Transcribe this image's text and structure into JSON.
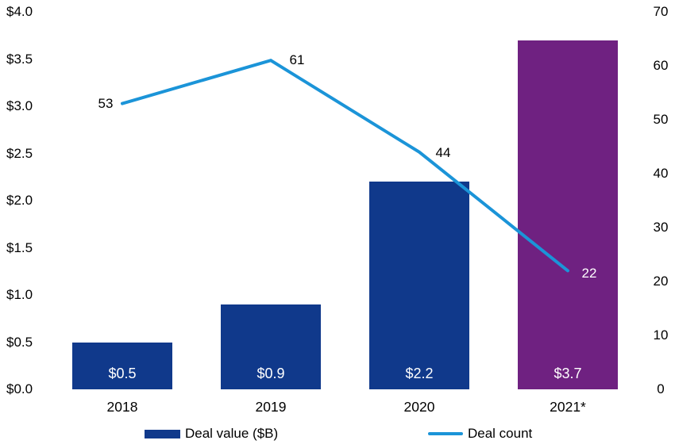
{
  "chart_data": {
    "type": "combo",
    "title": "",
    "categories": [
      "2018",
      "2019",
      "2020",
      "2021*"
    ],
    "series": [
      {
        "name": "Deal value ($B)",
        "type": "bar",
        "axis": "left",
        "values": [
          0.5,
          0.9,
          2.2,
          3.7
        ],
        "labels": [
          "$0.5",
          "$0.9",
          "$2.2",
          "$3.7"
        ],
        "bar_colors": [
          "#10398b",
          "#10398b",
          "#10398b",
          "#6f2181"
        ],
        "label_color": "#ffffff"
      },
      {
        "name": "Deal count",
        "type": "line",
        "axis": "right",
        "values": [
          53,
          61,
          44,
          22
        ],
        "labels": [
          "53",
          "61",
          "44",
          "22"
        ],
        "color": "#1b94d8",
        "label_colors": [
          "#000000",
          "#000000",
          "#000000",
          "#ffffff"
        ]
      }
    ],
    "left_axis": {
      "min": 0,
      "max": 4,
      "ticks": [
        "$4.0",
        "$3.5",
        "$3.0",
        "$2.5",
        "$2.0",
        "$1.5",
        "$1.0",
        "$0.5",
        "$0.0"
      ]
    },
    "right_axis": {
      "min": 0,
      "max": 70,
      "ticks": [
        "70",
        "60",
        "50",
        "40",
        "30",
        "20",
        "10",
        "0"
      ]
    },
    "grid": false,
    "legend_position": "bottom",
    "background": "#ffffff",
    "text_color": "#000000"
  }
}
